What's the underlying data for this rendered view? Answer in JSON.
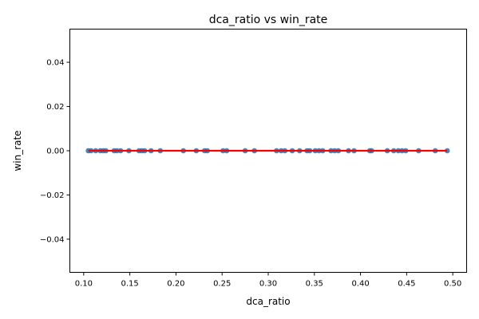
{
  "chart_data": {
    "type": "scatter",
    "title": "dca_ratio vs win_rate",
    "xlabel": "dca_ratio",
    "ylabel": "win_rate",
    "xlim": [
      0.085,
      0.515
    ],
    "ylim": [
      -0.055,
      0.055
    ],
    "xticks": [
      0.1,
      0.15,
      0.2,
      0.25,
      0.3,
      0.35,
      0.4,
      0.45,
      0.5
    ],
    "xtick_labels": [
      "0.10",
      "0.15",
      "0.20",
      "0.25",
      "0.30",
      "0.35",
      "0.40",
      "0.45",
      "0.50"
    ],
    "yticks": [
      -0.04,
      -0.02,
      0.0,
      0.02,
      0.04
    ],
    "ytick_labels": [
      "−0.04",
      "−0.02",
      "0.00",
      "0.02",
      "0.04"
    ],
    "grid": false,
    "legend": "none",
    "point_color": "#1f77b4",
    "trend_line_color": "#ff0000",
    "points": [
      {
        "x": 0.105,
        "y": 0.0
      },
      {
        "x": 0.108,
        "y": 0.0
      },
      {
        "x": 0.113,
        "y": 0.0
      },
      {
        "x": 0.118,
        "y": 0.0
      },
      {
        "x": 0.121,
        "y": 0.0
      },
      {
        "x": 0.124,
        "y": 0.0
      },
      {
        "x": 0.133,
        "y": 0.0
      },
      {
        "x": 0.136,
        "y": 0.0
      },
      {
        "x": 0.14,
        "y": 0.0
      },
      {
        "x": 0.149,
        "y": 0.0
      },
      {
        "x": 0.16,
        "y": 0.0
      },
      {
        "x": 0.163,
        "y": 0.0
      },
      {
        "x": 0.166,
        "y": 0.0
      },
      {
        "x": 0.173,
        "y": 0.0
      },
      {
        "x": 0.183,
        "y": 0.0
      },
      {
        "x": 0.208,
        "y": 0.0
      },
      {
        "x": 0.222,
        "y": 0.0
      },
      {
        "x": 0.231,
        "y": 0.0
      },
      {
        "x": 0.234,
        "y": 0.0
      },
      {
        "x": 0.251,
        "y": 0.0
      },
      {
        "x": 0.255,
        "y": 0.0
      },
      {
        "x": 0.275,
        "y": 0.0
      },
      {
        "x": 0.285,
        "y": 0.0
      },
      {
        "x": 0.309,
        "y": 0.0
      },
      {
        "x": 0.314,
        "y": 0.0
      },
      {
        "x": 0.318,
        "y": 0.0
      },
      {
        "x": 0.326,
        "y": 0.0
      },
      {
        "x": 0.334,
        "y": 0.0
      },
      {
        "x": 0.342,
        "y": 0.0
      },
      {
        "x": 0.345,
        "y": 0.0
      },
      {
        "x": 0.351,
        "y": 0.0
      },
      {
        "x": 0.355,
        "y": 0.0
      },
      {
        "x": 0.359,
        "y": 0.0
      },
      {
        "x": 0.368,
        "y": 0.0
      },
      {
        "x": 0.372,
        "y": 0.0
      },
      {
        "x": 0.376,
        "y": 0.0
      },
      {
        "x": 0.387,
        "y": 0.0
      },
      {
        "x": 0.393,
        "y": 0.0
      },
      {
        "x": 0.41,
        "y": 0.0
      },
      {
        "x": 0.412,
        "y": 0.0
      },
      {
        "x": 0.429,
        "y": 0.0
      },
      {
        "x": 0.436,
        "y": 0.0
      },
      {
        "x": 0.441,
        "y": 0.0
      },
      {
        "x": 0.445,
        "y": 0.0
      },
      {
        "x": 0.449,
        "y": 0.0
      },
      {
        "x": 0.463,
        "y": 0.0
      },
      {
        "x": 0.481,
        "y": 0.0
      },
      {
        "x": 0.494,
        "y": 0.0
      }
    ],
    "trend_line": {
      "x": [
        0.105,
        0.494
      ],
      "y": [
        0.0,
        0.0
      ]
    }
  }
}
